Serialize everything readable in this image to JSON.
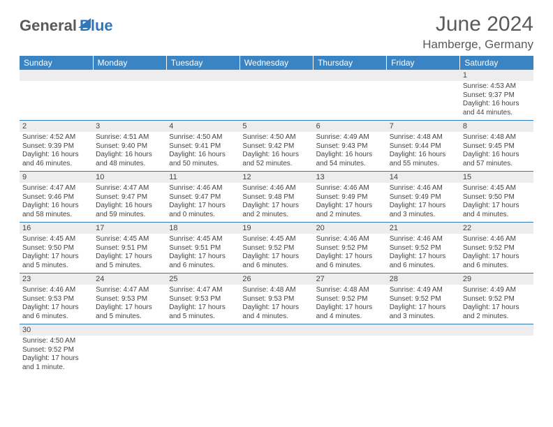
{
  "logo": {
    "general": "General",
    "blue": "Blue"
  },
  "title": "June 2024",
  "location": "Hamberge, Germany",
  "colors": {
    "header_bg": "#3b84c4",
    "header_text": "#ffffff",
    "border": "#2f77bd",
    "daybar_bg": "#ededed",
    "body_text": "#444444",
    "title_text": "#5a5a5a"
  },
  "weekdays": [
    "Sunday",
    "Monday",
    "Tuesday",
    "Wednesday",
    "Thursday",
    "Friday",
    "Saturday"
  ],
  "weeks": [
    [
      null,
      null,
      null,
      null,
      null,
      null,
      {
        "n": "1",
        "sr": "Sunrise: 4:53 AM",
        "ss": "Sunset: 9:37 PM",
        "dl": "Daylight: 16 hours and 44 minutes."
      }
    ],
    [
      {
        "n": "2",
        "sr": "Sunrise: 4:52 AM",
        "ss": "Sunset: 9:39 PM",
        "dl": "Daylight: 16 hours and 46 minutes."
      },
      {
        "n": "3",
        "sr": "Sunrise: 4:51 AM",
        "ss": "Sunset: 9:40 PM",
        "dl": "Daylight: 16 hours and 48 minutes."
      },
      {
        "n": "4",
        "sr": "Sunrise: 4:50 AM",
        "ss": "Sunset: 9:41 PM",
        "dl": "Daylight: 16 hours and 50 minutes."
      },
      {
        "n": "5",
        "sr": "Sunrise: 4:50 AM",
        "ss": "Sunset: 9:42 PM",
        "dl": "Daylight: 16 hours and 52 minutes."
      },
      {
        "n": "6",
        "sr": "Sunrise: 4:49 AM",
        "ss": "Sunset: 9:43 PM",
        "dl": "Daylight: 16 hours and 54 minutes."
      },
      {
        "n": "7",
        "sr": "Sunrise: 4:48 AM",
        "ss": "Sunset: 9:44 PM",
        "dl": "Daylight: 16 hours and 55 minutes."
      },
      {
        "n": "8",
        "sr": "Sunrise: 4:48 AM",
        "ss": "Sunset: 9:45 PM",
        "dl": "Daylight: 16 hours and 57 minutes."
      }
    ],
    [
      {
        "n": "9",
        "sr": "Sunrise: 4:47 AM",
        "ss": "Sunset: 9:46 PM",
        "dl": "Daylight: 16 hours and 58 minutes."
      },
      {
        "n": "10",
        "sr": "Sunrise: 4:47 AM",
        "ss": "Sunset: 9:47 PM",
        "dl": "Daylight: 16 hours and 59 minutes."
      },
      {
        "n": "11",
        "sr": "Sunrise: 4:46 AM",
        "ss": "Sunset: 9:47 PM",
        "dl": "Daylight: 17 hours and 0 minutes."
      },
      {
        "n": "12",
        "sr": "Sunrise: 4:46 AM",
        "ss": "Sunset: 9:48 PM",
        "dl": "Daylight: 17 hours and 2 minutes."
      },
      {
        "n": "13",
        "sr": "Sunrise: 4:46 AM",
        "ss": "Sunset: 9:49 PM",
        "dl": "Daylight: 17 hours and 2 minutes."
      },
      {
        "n": "14",
        "sr": "Sunrise: 4:46 AM",
        "ss": "Sunset: 9:49 PM",
        "dl": "Daylight: 17 hours and 3 minutes."
      },
      {
        "n": "15",
        "sr": "Sunrise: 4:45 AM",
        "ss": "Sunset: 9:50 PM",
        "dl": "Daylight: 17 hours and 4 minutes."
      }
    ],
    [
      {
        "n": "16",
        "sr": "Sunrise: 4:45 AM",
        "ss": "Sunset: 9:50 PM",
        "dl": "Daylight: 17 hours and 5 minutes."
      },
      {
        "n": "17",
        "sr": "Sunrise: 4:45 AM",
        "ss": "Sunset: 9:51 PM",
        "dl": "Daylight: 17 hours and 5 minutes."
      },
      {
        "n": "18",
        "sr": "Sunrise: 4:45 AM",
        "ss": "Sunset: 9:51 PM",
        "dl": "Daylight: 17 hours and 6 minutes."
      },
      {
        "n": "19",
        "sr": "Sunrise: 4:45 AM",
        "ss": "Sunset: 9:52 PM",
        "dl": "Daylight: 17 hours and 6 minutes."
      },
      {
        "n": "20",
        "sr": "Sunrise: 4:46 AM",
        "ss": "Sunset: 9:52 PM",
        "dl": "Daylight: 17 hours and 6 minutes."
      },
      {
        "n": "21",
        "sr": "Sunrise: 4:46 AM",
        "ss": "Sunset: 9:52 PM",
        "dl": "Daylight: 17 hours and 6 minutes."
      },
      {
        "n": "22",
        "sr": "Sunrise: 4:46 AM",
        "ss": "Sunset: 9:52 PM",
        "dl": "Daylight: 17 hours and 6 minutes."
      }
    ],
    [
      {
        "n": "23",
        "sr": "Sunrise: 4:46 AM",
        "ss": "Sunset: 9:53 PM",
        "dl": "Daylight: 17 hours and 6 minutes."
      },
      {
        "n": "24",
        "sr": "Sunrise: 4:47 AM",
        "ss": "Sunset: 9:53 PM",
        "dl": "Daylight: 17 hours and 5 minutes."
      },
      {
        "n": "25",
        "sr": "Sunrise: 4:47 AM",
        "ss": "Sunset: 9:53 PM",
        "dl": "Daylight: 17 hours and 5 minutes."
      },
      {
        "n": "26",
        "sr": "Sunrise: 4:48 AM",
        "ss": "Sunset: 9:53 PM",
        "dl": "Daylight: 17 hours and 4 minutes."
      },
      {
        "n": "27",
        "sr": "Sunrise: 4:48 AM",
        "ss": "Sunset: 9:52 PM",
        "dl": "Daylight: 17 hours and 4 minutes."
      },
      {
        "n": "28",
        "sr": "Sunrise: 4:49 AM",
        "ss": "Sunset: 9:52 PM",
        "dl": "Daylight: 17 hours and 3 minutes."
      },
      {
        "n": "29",
        "sr": "Sunrise: 4:49 AM",
        "ss": "Sunset: 9:52 PM",
        "dl": "Daylight: 17 hours and 2 minutes."
      }
    ],
    [
      {
        "n": "30",
        "sr": "Sunrise: 4:50 AM",
        "ss": "Sunset: 9:52 PM",
        "dl": "Daylight: 17 hours and 1 minute."
      },
      null,
      null,
      null,
      null,
      null,
      null
    ]
  ]
}
